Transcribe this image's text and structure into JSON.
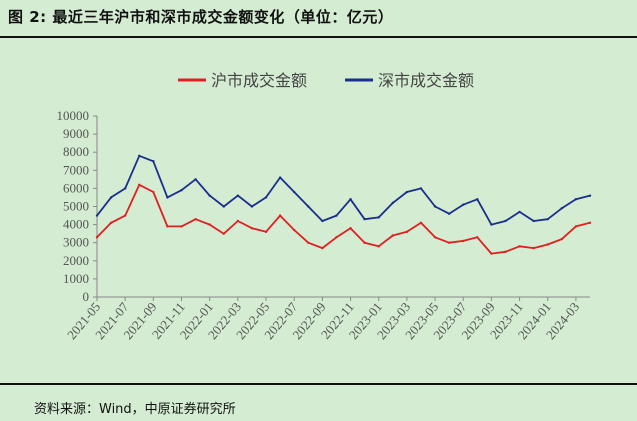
{
  "title": "图 2:  最近三年沪市和深市成交金额变化（单位：亿元）",
  "source": "资料来源：Wind，中原证券研究所",
  "chart_data": {
    "type": "line",
    "title": "",
    "xlabel": "",
    "ylabel": "",
    "ylim": [
      0,
      10000
    ],
    "yticks": [
      "0",
      "1000",
      "2000",
      "3000",
      "4000",
      "5000",
      "6000",
      "7000",
      "8000",
      "9000",
      "10000"
    ],
    "x_range": [
      "2021-05",
      "2024-04"
    ],
    "xtick_labels": [
      "2021-05",
      "2021-07",
      "2021-09",
      "2021-11",
      "2022-01",
      "2022-03",
      "2022-05",
      "2022-07",
      "2022-09",
      "2022-11",
      "2023-01",
      "2023-03",
      "2023-05",
      "2023-07",
      "2023-09",
      "2023-11",
      "2024-01",
      "2024-03"
    ],
    "legend_position": "top",
    "series": [
      {
        "name": "沪市成交金额",
        "color": "#e02020",
        "x": [
          "2021-05",
          "2021-06",
          "2021-07",
          "2021-08",
          "2021-09",
          "2021-10",
          "2021-11",
          "2021-12",
          "2022-01",
          "2022-02",
          "2022-03",
          "2022-04",
          "2022-05",
          "2022-06",
          "2022-07",
          "2022-08",
          "2022-09",
          "2022-10",
          "2022-11",
          "2022-12",
          "2023-01",
          "2023-02",
          "2023-03",
          "2023-04",
          "2023-05",
          "2023-06",
          "2023-07",
          "2023-08",
          "2023-09",
          "2023-10",
          "2023-11",
          "2023-12",
          "2024-01",
          "2024-02",
          "2024-03",
          "2024-04"
        ],
        "values": [
          3300,
          4100,
          4500,
          6200,
          5800,
          3900,
          3900,
          4300,
          4000,
          3500,
          4200,
          3800,
          3600,
          4500,
          3700,
          3000,
          2700,
          3300,
          3800,
          3000,
          2800,
          3400,
          3600,
          4100,
          3300,
          3000,
          3100,
          3300,
          2400,
          2500,
          2800,
          2700,
          2900,
          3200,
          3900,
          4100
        ]
      },
      {
        "name": "深市成交金额",
        "color": "#1a2f8c",
        "x": [
          "2021-05",
          "2021-06",
          "2021-07",
          "2021-08",
          "2021-09",
          "2021-10",
          "2021-11",
          "2021-12",
          "2022-01",
          "2022-02",
          "2022-03",
          "2022-04",
          "2022-05",
          "2022-06",
          "2022-07",
          "2022-08",
          "2022-09",
          "2022-10",
          "2022-11",
          "2022-12",
          "2023-01",
          "2023-02",
          "2023-03",
          "2023-04",
          "2023-05",
          "2023-06",
          "2023-07",
          "2023-08",
          "2023-09",
          "2023-10",
          "2023-11",
          "2023-12",
          "2024-01",
          "2024-02",
          "2024-03",
          "2024-04"
        ],
        "values": [
          4500,
          5500,
          6000,
          7800,
          7500,
          5500,
          5900,
          6500,
          5600,
          5000,
          5600,
          5000,
          5500,
          6600,
          5800,
          5000,
          4200,
          4500,
          5400,
          4300,
          4400,
          5200,
          5800,
          6000,
          5000,
          4600,
          5100,
          5400,
          4000,
          4200,
          4700,
          4200,
          4300,
          4900,
          5400,
          5600
        ]
      }
    ]
  }
}
